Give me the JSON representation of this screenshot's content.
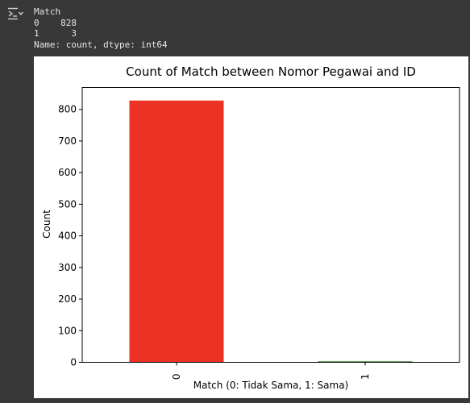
{
  "output_panel": {
    "icon": "output-toggle-icon",
    "console_lines": [
      "Match",
      "0    828",
      "1      3",
      "Name: count, dtype: int64"
    ]
  },
  "chart_data": {
    "type": "bar",
    "title": "Count of Match between Nomor Pegawai and ID",
    "xlabel": "Match (0: Tidak Sama, 1: Sama)",
    "ylabel": "Count",
    "categories": [
      "0",
      "1"
    ],
    "values": [
      828,
      3
    ],
    "colors": [
      "#ec3323",
      "#217d13"
    ],
    "ylim": [
      0,
      869.4
    ],
    "yticks": [
      0,
      100,
      200,
      300,
      400,
      500,
      600,
      700,
      800
    ],
    "xtick_rotation": 90,
    "grid": false,
    "legend": null
  }
}
